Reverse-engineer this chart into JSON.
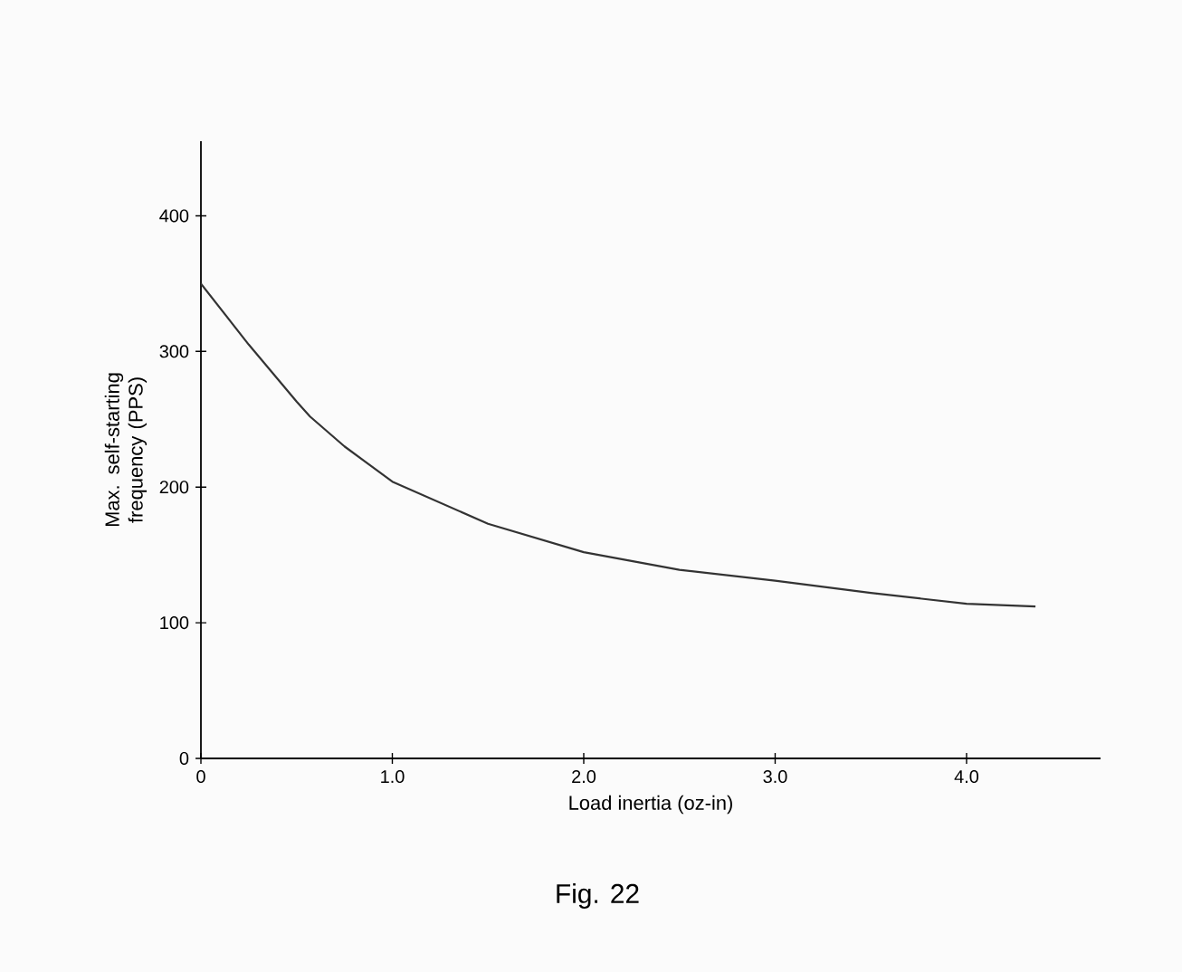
{
  "chart_data": {
    "type": "line",
    "xlabel": "Load inertia (oz-in)",
    "ylabel": "Max. self-starting frequency (PPS)",
    "annotations": [
      "Fig. 22"
    ],
    "x": [
      0,
      0.25,
      0.5,
      0.57,
      0.75,
      1.0,
      1.5,
      2.0,
      2.5,
      3.0,
      3.5,
      4.0,
      4.36
    ],
    "series": [
      {
        "color": "#333333",
        "values": [
          350,
          305,
          263,
          252,
          230,
          204,
          173,
          152,
          139,
          131,
          122,
          114,
          112
        ]
      }
    ],
    "xlim": [
      0,
      4.7
    ],
    "ylim": [
      0,
      455
    ],
    "xticks": [
      0,
      {
        "value": 1,
        "label": "1.0"
      },
      {
        "value": 2,
        "label": "2.0"
      },
      {
        "value": 3,
        "label": "3.0"
      },
      {
        "value": 4,
        "label": "4.0"
      }
    ],
    "yticks": [
      0,
      100,
      200,
      300,
      400
    ],
    "grid": false,
    "marker": "none",
    "line_style": "solid"
  }
}
